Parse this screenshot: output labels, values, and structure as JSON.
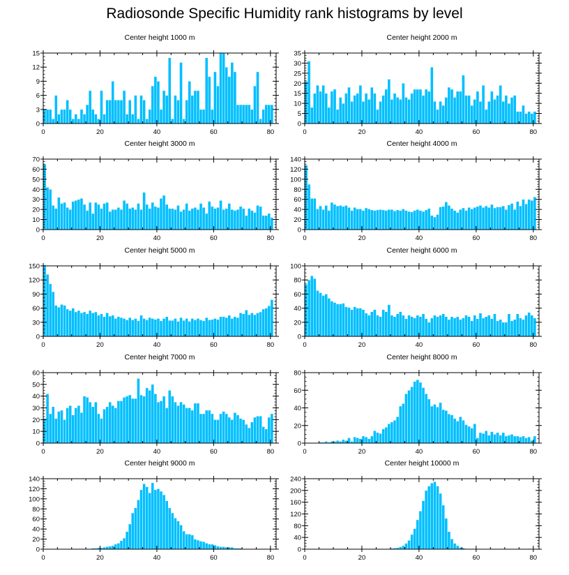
{
  "title": "Radiosonde Specific Humidity rank histograms by level",
  "colors": {
    "bar": "#00bfff",
    "bar_edge": "#ffffff",
    "axis": "#000000"
  },
  "chart_data": [
    {
      "type": "bar",
      "title": "Center height 1000 m",
      "xlim": [
        0,
        82
      ],
      "ylim": [
        0,
        15
      ],
      "xticks": [
        0,
        20,
        40,
        60,
        80
      ],
      "yticks": [
        0,
        3,
        6,
        9,
        12,
        15
      ],
      "xlabel": "",
      "ylabel": "",
      "values": [
        3,
        3,
        3,
        1,
        6,
        2,
        3,
        3,
        5,
        3,
        1,
        2,
        1,
        3,
        2,
        4,
        7,
        3,
        2,
        1,
        7,
        2,
        5,
        5,
        9,
        5,
        5,
        5,
        7,
        2,
        5,
        2,
        6,
        1,
        6,
        5,
        1,
        3,
        8,
        10,
        9,
        3,
        7,
        6,
        14,
        1,
        6,
        5,
        13,
        1,
        5,
        9,
        6,
        7,
        7,
        3,
        3,
        14,
        10,
        3,
        11,
        8,
        15,
        15,
        12,
        10,
        13,
        11,
        4,
        4,
        4,
        4,
        4,
        3,
        8,
        11,
        1,
        3,
        4,
        4,
        4
      ]
    },
    {
      "type": "bar",
      "title": "Center height 2000 m",
      "xlim": [
        0,
        82
      ],
      "ylim": [
        0,
        35
      ],
      "xticks": [
        0,
        20,
        40,
        60,
        80
      ],
      "yticks": [
        0,
        5,
        10,
        15,
        20,
        25,
        30,
        35
      ],
      "xlabel": "",
      "ylabel": "",
      "values": [
        21,
        31,
        8,
        15,
        19,
        16,
        19,
        15,
        8,
        16,
        17,
        7,
        13,
        10,
        15,
        18,
        11,
        14,
        15,
        19,
        11,
        15,
        12,
        18,
        15,
        7,
        11,
        14,
        17,
        22,
        12,
        15,
        13,
        12,
        20,
        13,
        12,
        15,
        17,
        17,
        17,
        14,
        17,
        16,
        28,
        11,
        7,
        11,
        9,
        13,
        18,
        17,
        13,
        16,
        16,
        24,
        14,
        14,
        9,
        12,
        16,
        11,
        19,
        7,
        11,
        16,
        12,
        14,
        19,
        11,
        14,
        10,
        13,
        14,
        6,
        6,
        9,
        5,
        6,
        5,
        6
      ]
    },
    {
      "type": "bar",
      "title": "Center height 3000 m",
      "xlim": [
        0,
        82
      ],
      "ylim": [
        0,
        70
      ],
      "xticks": [
        0,
        20,
        40,
        60,
        80
      ],
      "yticks": [
        0,
        10,
        20,
        30,
        40,
        50,
        60,
        70
      ],
      "xlabel": "",
      "ylabel": "",
      "values": [
        65,
        42,
        40,
        24,
        21,
        32,
        26,
        27,
        22,
        20,
        28,
        29,
        30,
        31,
        25,
        19,
        27,
        16,
        27,
        25,
        21,
        26,
        27,
        18,
        20,
        20,
        22,
        20,
        29,
        26,
        21,
        22,
        20,
        26,
        20,
        37,
        25,
        21,
        27,
        23,
        22,
        31,
        34,
        25,
        21,
        21,
        20,
        24,
        18,
        20,
        26,
        19,
        21,
        22,
        20,
        26,
        22,
        16,
        28,
        23,
        21,
        22,
        29,
        20,
        21,
        26,
        20,
        19,
        20,
        23,
        21,
        14,
        21,
        19,
        17,
        24,
        23,
        14,
        14,
        16,
        12
      ]
    },
    {
      "type": "bar",
      "title": "Center height 4000 m",
      "xlim": [
        0,
        82
      ],
      "ylim": [
        0,
        140
      ],
      "xticks": [
        0,
        20,
        40,
        60,
        80
      ],
      "yticks": [
        0,
        20,
        40,
        60,
        80,
        100,
        120,
        140
      ],
      "xlabel": "",
      "ylabel": "",
      "values": [
        128,
        90,
        62,
        62,
        41,
        47,
        40,
        48,
        38,
        54,
        50,
        47,
        48,
        46,
        48,
        44,
        38,
        44,
        41,
        41,
        38,
        43,
        41,
        39,
        38,
        39,
        40,
        39,
        38,
        40,
        40,
        37,
        39,
        38,
        41,
        38,
        36,
        35,
        38,
        40,
        38,
        36,
        39,
        42,
        28,
        25,
        30,
        45,
        46,
        55,
        48,
        42,
        38,
        34,
        40,
        43,
        38,
        44,
        41,
        44,
        46,
        48,
        44,
        47,
        44,
        50,
        43,
        45,
        45,
        47,
        40,
        49,
        52,
        40,
        56,
        47,
        60,
        51,
        60,
        58,
        65
      ]
    },
    {
      "type": "bar",
      "title": "Center height 5000 m",
      "xlim": [
        0,
        82
      ],
      "ylim": [
        0,
        150
      ],
      "xticks": [
        0,
        20,
        40,
        60,
        80
      ],
      "yticks": [
        0,
        30,
        60,
        90,
        120,
        150
      ],
      "xlabel": "",
      "ylabel": "",
      "values": [
        152,
        132,
        112,
        95,
        66,
        62,
        68,
        66,
        58,
        55,
        60,
        52,
        55,
        50,
        52,
        48,
        55,
        50,
        52,
        45,
        48,
        42,
        50,
        43,
        45,
        38,
        42,
        40,
        38,
        35,
        40,
        35,
        38,
        33,
        45,
        38,
        35,
        40,
        38,
        36,
        38,
        33,
        38,
        42,
        34,
        34,
        38,
        32,
        40,
        34,
        38,
        32,
        38,
        35,
        38,
        35,
        33,
        40,
        35,
        36,
        38,
        36,
        42,
        42,
        40,
        45,
        38,
        42,
        40,
        50,
        48,
        56,
        46,
        50,
        46,
        50,
        52,
        58,
        60,
        65,
        78
      ]
    },
    {
      "type": "bar",
      "title": "Center height 6000 m",
      "xlim": [
        0,
        82
      ],
      "ylim": [
        0,
        100
      ],
      "xticks": [
        0,
        20,
        40,
        60,
        80
      ],
      "yticks": [
        0,
        20,
        40,
        60,
        80,
        100
      ],
      "xlabel": "",
      "ylabel": "",
      "values": [
        74,
        80,
        86,
        82,
        65,
        62,
        58,
        60,
        54,
        50,
        48,
        46,
        46,
        47,
        42,
        41,
        38,
        42,
        40,
        40,
        38,
        33,
        30,
        35,
        38,
        30,
        28,
        38,
        35,
        45,
        30,
        28,
        32,
        35,
        30,
        25,
        30,
        28,
        26,
        30,
        28,
        32,
        25,
        20,
        26,
        30,
        28,
        30,
        32,
        28,
        24,
        28,
        26,
        28,
        24,
        26,
        30,
        28,
        22,
        30,
        25,
        33,
        26,
        28,
        30,
        25,
        32,
        22,
        24,
        20,
        20,
        32,
        22,
        24,
        32,
        26,
        24,
        30,
        34,
        30,
        26
      ]
    },
    {
      "type": "bar",
      "title": "Center height 7000 m",
      "xlim": [
        0,
        82
      ],
      "ylim": [
        0,
        60
      ],
      "xticks": [
        0,
        20,
        40,
        60,
        80
      ],
      "yticks": [
        0,
        10,
        20,
        30,
        40,
        50,
        60
      ],
      "xlabel": "",
      "ylabel": "",
      "values": [
        21,
        42,
        25,
        31,
        21,
        27,
        28,
        20,
        30,
        32,
        24,
        30,
        32,
        26,
        40,
        39,
        35,
        31,
        35,
        25,
        21,
        29,
        31,
        35,
        32,
        30,
        36,
        36,
        39,
        40,
        41,
        38,
        38,
        55,
        41,
        40,
        47,
        45,
        50,
        42,
        35,
        36,
        40,
        30,
        45,
        40,
        35,
        32,
        35,
        33,
        30,
        30,
        28,
        34,
        34,
        25,
        25,
        28,
        28,
        25,
        20,
        20,
        25,
        27,
        25,
        22,
        20,
        26,
        24,
        21,
        20,
        16,
        13,
        18,
        22,
        23,
        23,
        14,
        12,
        22,
        25
      ]
    },
    {
      "type": "bar",
      "title": "Center height 8000 m",
      "xlim": [
        0,
        82
      ],
      "ylim": [
        0,
        80
      ],
      "xticks": [
        0,
        20,
        40,
        60,
        80
      ],
      "yticks": [
        0,
        20,
        40,
        60,
        80
      ],
      "xlabel": "",
      "ylabel": "",
      "values": [
        0,
        0,
        0,
        0,
        0,
        1,
        1,
        2,
        1,
        2,
        2,
        3,
        2,
        4,
        3,
        6,
        2,
        7,
        6,
        5,
        8,
        7,
        5,
        8,
        14,
        12,
        11,
        16,
        18,
        22,
        24,
        26,
        30,
        42,
        45,
        56,
        60,
        64,
        70,
        72,
        69,
        63,
        56,
        50,
        42,
        44,
        41,
        46,
        38,
        37,
        33,
        32,
        28,
        25,
        30,
        26,
        21,
        19,
        17,
        22,
        6,
        12,
        11,
        14,
        9,
        13,
        10,
        12,
        9,
        12,
        8,
        9,
        10,
        8,
        8,
        7,
        8,
        6,
        7,
        3,
        8
      ]
    },
    {
      "type": "bar",
      "title": "Center height 9000 m",
      "xlim": [
        0,
        82
      ],
      "ylim": [
        0,
        140
      ],
      "xticks": [
        0,
        20,
        40,
        60,
        80
      ],
      "yticks": [
        0,
        20,
        40,
        60,
        80,
        100,
        120,
        140
      ],
      "xlabel": "",
      "ylabel": "",
      "values": [
        0,
        0,
        0,
        0,
        0,
        0,
        0,
        0,
        0,
        0,
        0,
        0,
        0,
        0,
        0,
        0,
        1,
        2,
        2,
        3,
        3,
        4,
        5,
        6,
        7,
        10,
        12,
        17,
        22,
        35,
        50,
        72,
        82,
        98,
        118,
        130,
        124,
        112,
        132,
        118,
        120,
        115,
        108,
        96,
        82,
        72,
        62,
        56,
        48,
        36,
        30,
        30,
        28,
        20,
        18,
        16,
        15,
        12,
        10,
        10,
        8,
        6,
        5,
        5,
        4,
        4,
        4,
        2,
        2,
        2,
        1,
        1,
        0,
        0,
        0,
        0,
        0,
        0,
        0,
        0,
        0
      ]
    },
    {
      "type": "bar",
      "title": "Center height 10000 m",
      "xlim": [
        0,
        82
      ],
      "ylim": [
        0,
        240
      ],
      "xticks": [
        0,
        20,
        40,
        60,
        80
      ],
      "yticks": [
        0,
        40,
        80,
        120,
        160,
        200,
        240
      ],
      "xlabel": "",
      "ylabel": "",
      "values": [
        0,
        0,
        0,
        0,
        0,
        0,
        0,
        0,
        0,
        0,
        0,
        0,
        0,
        0,
        0,
        0,
        0,
        0,
        0,
        0,
        0,
        0,
        0,
        0,
        0,
        0,
        0,
        1,
        1,
        2,
        3,
        4,
        5,
        8,
        12,
        20,
        30,
        50,
        70,
        100,
        130,
        165,
        200,
        215,
        225,
        230,
        215,
        190,
        150,
        105,
        60,
        35,
        20,
        12,
        6,
        4,
        2,
        1,
        1,
        0,
        0,
        0,
        0,
        0,
        0,
        0,
        0,
        0,
        0,
        0,
        0,
        0,
        0,
        0,
        0,
        0,
        0,
        0,
        0,
        0,
        0
      ]
    }
  ]
}
